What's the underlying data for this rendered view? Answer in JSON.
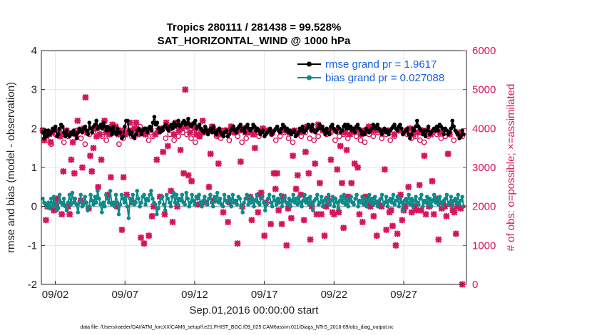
{
  "chart_data": {
    "type": "line",
    "title_line1": "Tropics 280111 / 281438 = 99.528%",
    "title_line2": "SAT_HORIZONTAL_WIND @ 1000 hPa",
    "xlabel": "Sep.01,2016 00:00:00 start",
    "ylabel_left": "rmse and bias (model - observation)",
    "ylabel_right": "# of obs: o=possible; ×=assimilated",
    "x_ticks": [
      "09/02",
      "09/07",
      "09/12",
      "09/17",
      "09/22",
      "09/27"
    ],
    "x_tick_days": [
      2,
      7,
      12,
      17,
      22,
      27
    ],
    "xlim": [
      1,
      31.5
    ],
    "y_left_ticks": [
      "-2",
      "-1",
      "0",
      "1",
      "2",
      "3",
      "4"
    ],
    "ylim_left": [
      -2,
      4
    ],
    "y_right_ticks": [
      "0",
      "1000",
      "2000",
      "3000",
      "4000",
      "5000",
      "6000"
    ],
    "ylim_right": [
      0,
      6000
    ],
    "grid": true,
    "legend": [
      "rmse grand pr = 1.9617",
      "bias grand pr = 0.027088"
    ],
    "legend_position": "top-right",
    "footer": "data file: /Users/raeder/DAI/ATM_forcXX/CAM6_setup/f.e21.FHIST_BGC.f09_025.CAM6assim.011/Diags_NTrS_2016-09/obs_diag_output.nc",
    "colors": {
      "rmse": "#000000",
      "bias": "#0d8a8a",
      "obs": "#d6135c",
      "zero_line": "#b3b3b3",
      "legend_text": "#1560e0"
    },
    "series": [
      {
        "name": "rmse",
        "axis": "left",
        "values": [
          1.9,
          1.75,
          1.95,
          1.8,
          1.95,
          1.85,
          1.9,
          2.0,
          1.95,
          2.05,
          1.8,
          1.85,
          2.0,
          2.1,
          2.05,
          1.9,
          1.8,
          1.95,
          1.85,
          1.8,
          1.9,
          1.85,
          1.95,
          1.85,
          1.75,
          1.9,
          2.0,
          1.95,
          1.9,
          2.0,
          2.05,
          1.95,
          1.85,
          2.15,
          2.0,
          1.9,
          2.05,
          2.1,
          2.2,
          2.0,
          2.05,
          2.1,
          2.0,
          2.15,
          2.05,
          1.95,
          2.05,
          1.95,
          2.0,
          1.85,
          2.05,
          1.9,
          1.85,
          2.0,
          1.9,
          1.9,
          1.75,
          1.8,
          2.05,
          2.2,
          2.2,
          1.95,
          1.85,
          1.9,
          1.8,
          1.75,
          1.85,
          1.95,
          2.0,
          1.95,
          1.85,
          1.95,
          2.0,
          2.0,
          1.9,
          2.0,
          2.05,
          1.95,
          2.15,
          2.3,
          2.1,
          2.15,
          2.0,
          1.9,
          2.0,
          1.95,
          2.05,
          2.1,
          2.0,
          1.95,
          2.05,
          2.1,
          2.0,
          2.15,
          2.05,
          2.1,
          2.2,
          2.05,
          2.1,
          2.15,
          2.2,
          2.1,
          2.15,
          2.25,
          2.1,
          2.05,
          2.1,
          2.15,
          2.2,
          2.0,
          2.05,
          2.1,
          2.0,
          1.95,
          1.9,
          2.05,
          1.95,
          1.85,
          1.95,
          2.0,
          1.9,
          2.05,
          1.9,
          1.85,
          1.95,
          2.0,
          1.9,
          1.85,
          1.8,
          1.9,
          1.95,
          1.8,
          1.85,
          1.95,
          2.0,
          2.05,
          1.95,
          1.9,
          2.0,
          2.05,
          2.1,
          1.95,
          2.0,
          1.9,
          2.05,
          2.1,
          2.0,
          1.95,
          2.0,
          2.1,
          2.05,
          1.95,
          2.0,
          1.95,
          1.85,
          1.9,
          1.95,
          1.8,
          1.85,
          1.9,
          1.95,
          2.0,
          1.85,
          1.9,
          1.95,
          2.0,
          2.05,
          1.95,
          1.9,
          2.0,
          2.1,
          2.05,
          1.95,
          2.0,
          1.9,
          1.95,
          1.85,
          1.9,
          1.95,
          1.8,
          1.85,
          1.9,
          2.0,
          1.95,
          2.05,
          1.9,
          1.95,
          2.0,
          2.1,
          2.05,
          1.95,
          2.1,
          1.95,
          1.9,
          1.95,
          2.0,
          2.1,
          2.0,
          2.05,
          1.95,
          1.85,
          2.0,
          1.9,
          1.85,
          2.05,
          2.1,
          2.0,
          1.95,
          1.9,
          2.05,
          2.0,
          1.9,
          1.95,
          2.05,
          2.1,
          2.0,
          2.1,
          2.0,
          2.05,
          1.95,
          2.0,
          1.9,
          2.05,
          2.1,
          2.0,
          1.95,
          1.85,
          1.9,
          1.85,
          2.0,
          1.95,
          1.9,
          1.95,
          2.0,
          2.1,
          2.05,
          2.0,
          2.1,
          2.0,
          1.95,
          1.85,
          1.95,
          2.0,
          1.9,
          1.95,
          1.85,
          1.95,
          2.0,
          2.05,
          2.1,
          2.0,
          1.95,
          2.05,
          2.1,
          2.0,
          1.85,
          1.9,
          1.95,
          2.0,
          1.85,
          1.75,
          1.85,
          2.0,
          1.95,
          2.05,
          2.2,
          2.05,
          2.0,
          1.95,
          1.85,
          1.95,
          1.8,
          1.95,
          2.05,
          1.85,
          1.9,
          1.95,
          2.0,
          1.95,
          2.05,
          1.95,
          2.1,
          2.05,
          2.0,
          1.85,
          2.0,
          1.95,
          1.85,
          1.9,
          2.0,
          2.2,
          2.05,
          1.95,
          1.9,
          1.85,
          1.75,
          1.8,
          1.95,
          1.85
        ]
      },
      {
        "name": "bias",
        "axis": "left",
        "values": [
          0.2,
          0.1,
          0.05,
          0.0,
          0.1,
          -0.05,
          0.2,
          0.0,
          0.25,
          0.05,
          -0.1,
          -0.05,
          0.3,
          0.1,
          0.05,
          0.2,
          0.0,
          -0.1,
          0.1,
          0.3,
          0.05,
          0.35,
          0.1,
          0.2,
          0.05,
          -0.15,
          0.1,
          0.3,
          0.0,
          0.05,
          0.25,
          0.1,
          -0.1,
          0.0,
          0.3,
          0.15,
          0.05,
          0.25,
          0.1,
          0.4,
          0.2,
          0.05,
          -0.15,
          0.1,
          0.0,
          0.3,
          0.2,
          0.1,
          0.4,
          0.05,
          0.1,
          0.0,
          0.3,
          0.1,
          -0.2,
          0.05,
          0.3,
          0.2,
          0.1,
          0.25,
          0.0,
          -0.3,
          0.2,
          0.1,
          0.3,
          0.05,
          0.1,
          0.4,
          0.2,
          0.0,
          0.1,
          0.25,
          0.3,
          0.05,
          0.2,
          0.15,
          0.3,
          0.4,
          0.2,
          0.1,
          0.05,
          -0.2,
          -0.05,
          0.1,
          0.2,
          0.25,
          0.05,
          -0.1,
          0.3,
          0.2,
          0.1,
          0.0,
          0.25,
          0.35,
          0.1,
          0.3,
          0.05,
          0.2,
          0.15,
          0.3,
          0.1,
          0.05,
          0.35,
          0.2,
          0.0,
          0.1,
          0.3,
          0.15,
          0.05,
          0.25,
          0.2,
          0.3,
          0.1,
          0.0,
          0.15,
          0.25,
          0.1,
          0.05,
          0.2,
          0.3,
          0.1,
          0.0,
          0.25,
          0.15,
          0.35,
          0.1,
          0.2,
          0.05,
          0.0,
          0.3,
          0.15,
          0.1,
          0.25,
          0.2,
          0.0,
          0.3,
          0.1,
          0.15,
          0.05,
          0.25,
          0.2,
          0.0,
          -0.15,
          0.1,
          0.2,
          0.3,
          0.05,
          0.25,
          0.1,
          0.2,
          0.0,
          0.15,
          0.3,
          0.1,
          0.05,
          0.2,
          0.25,
          0.1,
          -0.1,
          0.05,
          0.2,
          0.3,
          0.1,
          0.0,
          0.25,
          0.15,
          0.05,
          0.2,
          0.1,
          0.3,
          0.0,
          0.15,
          0.25,
          0.1,
          0.05,
          0.2,
          0.0,
          0.15,
          0.3,
          0.1,
          0.2,
          0.05,
          0.25,
          0.1,
          0.0,
          0.15,
          0.3,
          0.1,
          0.2,
          0.05,
          0.25,
          0.1,
          -0.1,
          0.15,
          0.2,
          0.3,
          0.05,
          0.1,
          0.25,
          0.0,
          0.15,
          0.2,
          0.1,
          0.3,
          0.05,
          0.15,
          0.25,
          0.0,
          0.2,
          0.1,
          -0.05,
          0.15,
          0.25,
          0.1,
          0.3,
          0.05,
          0.2,
          0.0,
          0.15,
          0.25,
          0.1,
          0.05,
          0.2,
          0.3,
          0.0,
          0.15,
          0.1,
          0.25,
          0.05,
          0.2,
          0.0,
          0.15,
          0.3,
          0.1,
          0.2,
          0.05,
          0.25,
          0.1,
          0.0,
          0.15,
          0.2,
          0.3,
          0.05,
          0.1,
          0.25,
          0.0,
          0.15,
          0.2,
          0.1,
          0.3,
          0.05,
          0.15,
          0.25,
          0.0,
          0.2,
          0.1,
          -0.1,
          0.15,
          0.2,
          0.1,
          0.3,
          0.05,
          0.2,
          0.0,
          0.15,
          0.25,
          0.1,
          0.05,
          0.2,
          0.3,
          0.0,
          0.15,
          0.1,
          0.25,
          0.05,
          0.2,
          0.0,
          0.15,
          0.3,
          0.1,
          0.2,
          0.05,
          0.25,
          0.1,
          0.0,
          0.15,
          0.2,
          0.3,
          0.05,
          0.1,
          0.25,
          0.0,
          0.15,
          0.2,
          0.1,
          0.3,
          0.05,
          0.15,
          0.25,
          0.0
        ]
      },
      {
        "name": "observations",
        "axis": "right",
        "values": [
          3950,
          3700,
          3600,
          3850,
          3900,
          3650,
          3800,
          3900,
          3950,
          3750,
          3600,
          3850,
          4000,
          3900,
          3800,
          3700,
          3850,
          3900,
          3600,
          3750,
          3950,
          3800,
          3900,
          4050,
          3850,
          3700,
          3800,
          3900,
          3950,
          3750,
          3850,
          3700,
          3800,
          3900,
          3850,
          3750,
          3650,
          3800,
          3950,
          3900,
          4050,
          3800,
          3750,
          3850,
          3700,
          3900,
          3800,
          3650,
          3750,
          3900,
          3850,
          3800,
          4000,
          3950,
          3850,
          3700,
          3800,
          3900,
          3750,
          3650,
          3850,
          3800,
          3900,
          3750,
          3700,
          3800,
          3950,
          3850,
          3900,
          3700,
          3800,
          3850,
          3750,
          3900,
          3800,
          3700,
          3650,
          3850,
          3800,
          3900,
          3750,
          3850,
          3700,
          3800,
          3950,
          3900,
          3850,
          3750,
          3800,
          3700,
          3650,
          3800,
          3900,
          3850,
          3750,
          3800,
          3900,
          3700,
          3850,
          3800
        ]
      },
      {
        "name": "assimilated",
        "axis": "right",
        "values": [
          3950,
          3700,
          1650,
          2000,
          3850,
          3650,
          3900,
          1900,
          2050,
          2200,
          3950,
          3800,
          1800,
          2900,
          3850,
          3950,
          2000,
          1800,
          3200,
          3650,
          2850,
          3850,
          4200,
          3950,
          2150,
          3000,
          4000,
          4800,
          3900,
          1950,
          3300,
          2900,
          3500,
          4000,
          3800,
          2500,
          3850,
          3200,
          4050,
          4200,
          3900,
          2300,
          3850,
          2750,
          4100,
          3950,
          4050,
          2000,
          3850,
          3950,
          1400,
          2750,
          3850,
          2300,
          3900,
          4150,
          3950,
          2100,
          4000,
          4150,
          3850,
          3950,
          1200,
          3950,
          1050,
          3850,
          3900,
          1250,
          4000,
          1750,
          2000,
          3850,
          3200,
          3950,
          2250,
          4000,
          3400,
          1800,
          4150,
          3550,
          4000,
          2400,
          1600,
          3850,
          4150,
          2000,
          3950,
          3450,
          4000,
          2850,
          5000,
          4050,
          2800,
          3900,
          2650,
          4100,
          4000,
          3850,
          2050,
          3800,
          3900,
          4200,
          3900,
          2100,
          3950,
          2500,
          3350,
          4050,
          2150,
          3950,
          3850,
          3100,
          3950,
          3850,
          1850,
          3950,
          3950,
          1600,
          2100,
          4050,
          3950,
          3900,
          3950,
          1050,
          3950,
          3150,
          2000,
          4000,
          3900,
          3950,
          3900,
          2250,
          1650,
          3850,
          3500,
          3950,
          1850,
          2300,
          2350,
          4000,
          1250,
          2100,
          3950,
          3950,
          1550,
          3900,
          2850,
          2450,
          2850,
          1900,
          3950,
          1550,
          2250,
          3950,
          1000,
          1950,
          3900,
          1700,
          3300,
          3950,
          2450,
          2800,
          3900,
          2300,
          3950,
          1650,
          3400,
          4050,
          2850,
          1150,
          2000,
          3950,
          3100,
          1800,
          4100,
          2600,
          1800,
          3950,
          1250,
          2000,
          2200,
          3950,
          3200,
          1850,
          1800,
          3950,
          2950,
          1850,
          3550,
          2600,
          1450,
          3900,
          3450,
          2250,
          3850,
          2600,
          3950,
          3100,
          3950,
          3000,
          1800,
          3850,
          1600,
          3950,
          2250,
          2050,
          4050,
          2000,
          3950,
          1750,
          3950,
          1250,
          2100,
          3950,
          2000,
          3950,
          2950,
          1400,
          3950,
          1850,
          1900,
          1500,
          3850,
          1000,
          1300,
          3950,
          2300,
          1650,
          1900,
          2000,
          3950,
          2500,
          4000,
          1850,
          3850,
          2000,
          1900,
          3900,
          2550,
          1900,
          3950,
          3300,
          1800,
          3950,
          2000,
          3850,
          2650,
          1800,
          3950,
          2200,
          1150,
          3900,
          1950,
          2050,
          2000,
          1750,
          3350,
          3850,
          2050,
          1900,
          1850,
          1300,
          2000,
          3900,
          1950,
          0
        ]
      }
    ]
  }
}
